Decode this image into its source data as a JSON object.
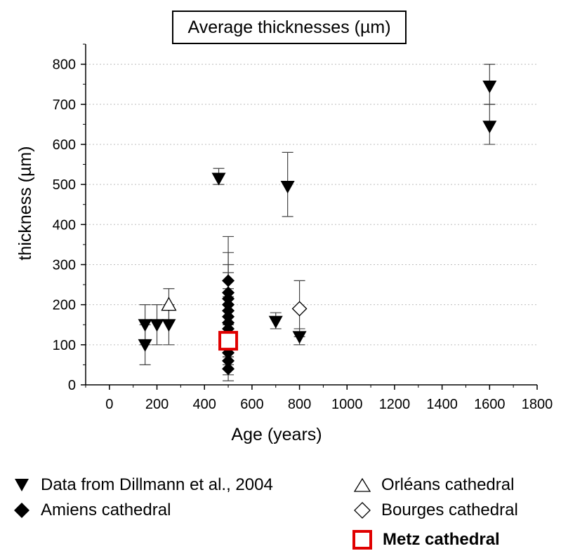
{
  "chart_data": {
    "type": "scatter",
    "title": "Average thicknesses  (µm)",
    "xlabel": "Age (years)",
    "ylabel": "thickness  (µm)",
    "xlim": [
      -100,
      1800
    ],
    "ylim": [
      0,
      850
    ],
    "x_ticks": [
      0,
      200,
      400,
      600,
      800,
      1000,
      1200,
      1400,
      1600,
      1800
    ],
    "y_ticks": [
      0,
      100,
      200,
      300,
      400,
      500,
      600,
      700,
      800
    ],
    "grid": "horizontal dotted",
    "legend_position": "bottom",
    "series": [
      {
        "name": "Data from Dillmann et al., 2004",
        "marker": "triangle-down-filled",
        "color": "#000000",
        "points": [
          {
            "x": 150,
            "y": 100,
            "err_low": 50,
            "err_high": 150
          },
          {
            "x": 150,
            "y": 150,
            "err_low": 100,
            "err_high": 200
          },
          {
            "x": 200,
            "y": 150,
            "err_low": 100,
            "err_high": 200
          },
          {
            "x": 250,
            "y": 150,
            "err_low": 100,
            "err_high": 200
          },
          {
            "x": 460,
            "y": 515,
            "err_low": 500,
            "err_high": 540
          },
          {
            "x": 700,
            "y": 158,
            "err_low": 140,
            "err_high": 180
          },
          {
            "x": 750,
            "y": 495,
            "err_low": 420,
            "err_high": 580
          },
          {
            "x": 800,
            "y": 120,
            "err_low": 100,
            "err_high": 140
          },
          {
            "x": 1600,
            "y": 645,
            "err_low": 600,
            "err_high": 700
          },
          {
            "x": 1600,
            "y": 745,
            "err_low": 700,
            "err_high": 800
          }
        ]
      },
      {
        "name": "Amiens cathedral",
        "marker": "diamond-filled",
        "color": "#000000",
        "points": [
          {
            "x": 500,
            "y": 40,
            "err_low": 10,
            "err_high": 70
          },
          {
            "x": 500,
            "y": 60,
            "err_low": 25,
            "err_high": 95
          },
          {
            "x": 500,
            "y": 80,
            "err_low": 40,
            "err_high": 120
          },
          {
            "x": 500,
            "y": 100,
            "err_low": 50,
            "err_high": 150
          },
          {
            "x": 500,
            "y": 120,
            "err_low": 70,
            "err_high": 170
          },
          {
            "x": 500,
            "y": 140,
            "err_low": 80,
            "err_high": 200
          },
          {
            "x": 500,
            "y": 155,
            "err_low": 90,
            "err_high": 220
          },
          {
            "x": 500,
            "y": 170,
            "err_low": 100,
            "err_high": 240
          },
          {
            "x": 500,
            "y": 185,
            "err_low": 110,
            "err_high": 260
          },
          {
            "x": 500,
            "y": 200,
            "err_low": 120,
            "err_high": 280
          },
          {
            "x": 500,
            "y": 215,
            "err_low": 130,
            "err_high": 300
          },
          {
            "x": 500,
            "y": 230,
            "err_low": 140,
            "err_high": 330
          },
          {
            "x": 500,
            "y": 260,
            "err_low": 150,
            "err_high": 370
          }
        ]
      },
      {
        "name": "Orléans cathedral",
        "marker": "triangle-up-open",
        "color": "#000000",
        "points": [
          {
            "x": 250,
            "y": 200,
            "err_low": 160,
            "err_high": 240
          }
        ]
      },
      {
        "name": "Bourges cathedral",
        "marker": "diamond-open",
        "color": "#000000",
        "points": [
          {
            "x": 800,
            "y": 190,
            "err_low": 120,
            "err_high": 260
          }
        ]
      },
      {
        "name": "Metz cathedral",
        "marker": "square-open",
        "color": "#e00000",
        "points": [
          {
            "x": 500,
            "y": 110
          }
        ]
      }
    ]
  }
}
